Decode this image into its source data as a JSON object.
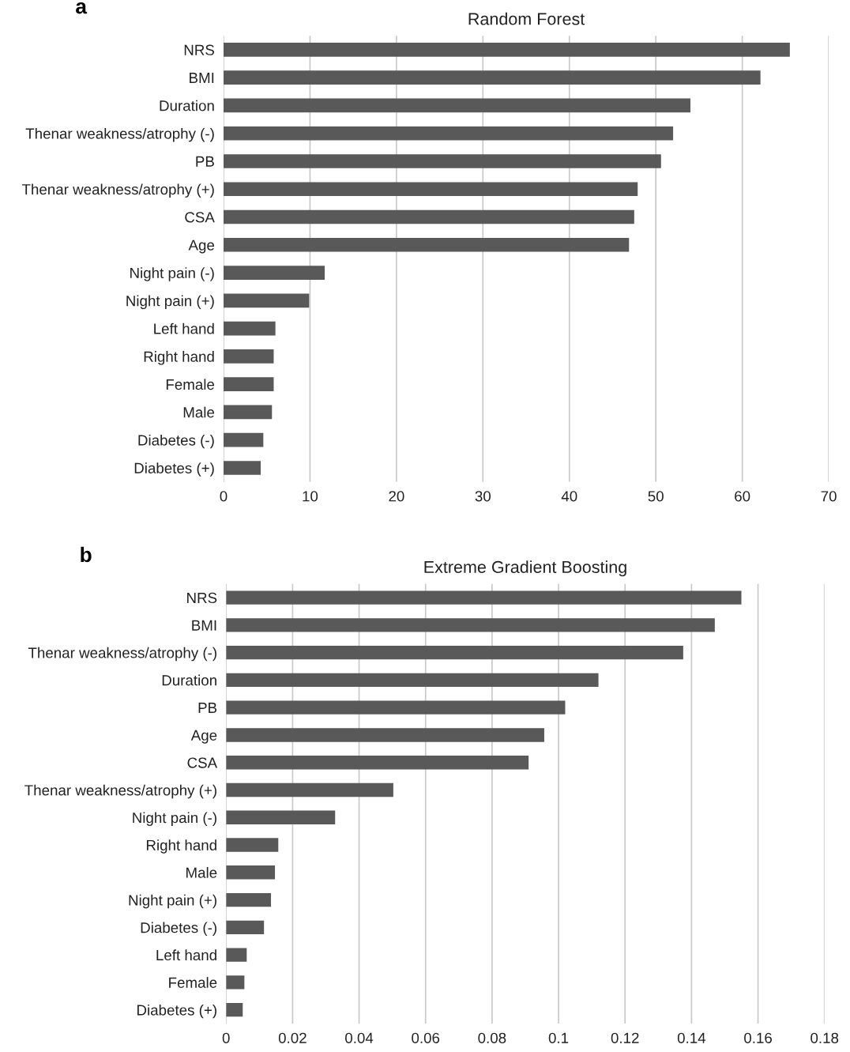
{
  "chart_data": [
    {
      "type": "bar",
      "orientation": "horizontal",
      "title": "Random Forest",
      "annotations": [
        "a"
      ],
      "categories": [
        "NRS",
        "BMI",
        "Duration",
        "Thenar weakness/atrophy (-)",
        "PB",
        "Thenar weakness/atrophy (+)",
        "CSA",
        "Age",
        "Night pain (-)",
        "Night pain (+)",
        "Left hand",
        "Right hand",
        "Female",
        "Male",
        "Diabetes (-)",
        "Diabetes (+)"
      ],
      "values": [
        65.5,
        62.1,
        54.0,
        52.0,
        50.6,
        47.9,
        47.5,
        46.9,
        11.7,
        9.9,
        6.0,
        5.8,
        5.8,
        5.6,
        4.6,
        4.3
      ],
      "color": "#595959",
      "xlim": [
        0,
        70
      ],
      "xticks": [
        0,
        10,
        20,
        30,
        40,
        50,
        60,
        70
      ],
      "grid": "x"
    },
    {
      "type": "bar",
      "orientation": "horizontal",
      "title": "Extreme Gradient Boosting",
      "annotations": [
        "b"
      ],
      "categories": [
        "NRS",
        "BMI",
        "Thenar weakness/atrophy (-)",
        "Duration",
        "PB",
        "Age",
        "CSA",
        "Thenar weakness/atrophy (+)",
        "Night pain (-)",
        "Right hand",
        "Male",
        "Night pain (+)",
        "Diabetes (-)",
        "Left hand",
        "Female",
        "Diabetes (+)"
      ],
      "values": [
        0.155,
        0.147,
        0.1375,
        0.112,
        0.102,
        0.0957,
        0.091,
        0.0503,
        0.0328,
        0.0157,
        0.0147,
        0.0135,
        0.0114,
        0.0062,
        0.0055,
        0.005
      ],
      "color": "#595959",
      "xlim": [
        0,
        0.18
      ],
      "xticks": [
        0,
        0.02,
        0.04,
        0.06,
        0.08,
        0.1,
        0.12,
        0.14,
        0.16,
        0.18
      ],
      "grid": "x"
    }
  ]
}
